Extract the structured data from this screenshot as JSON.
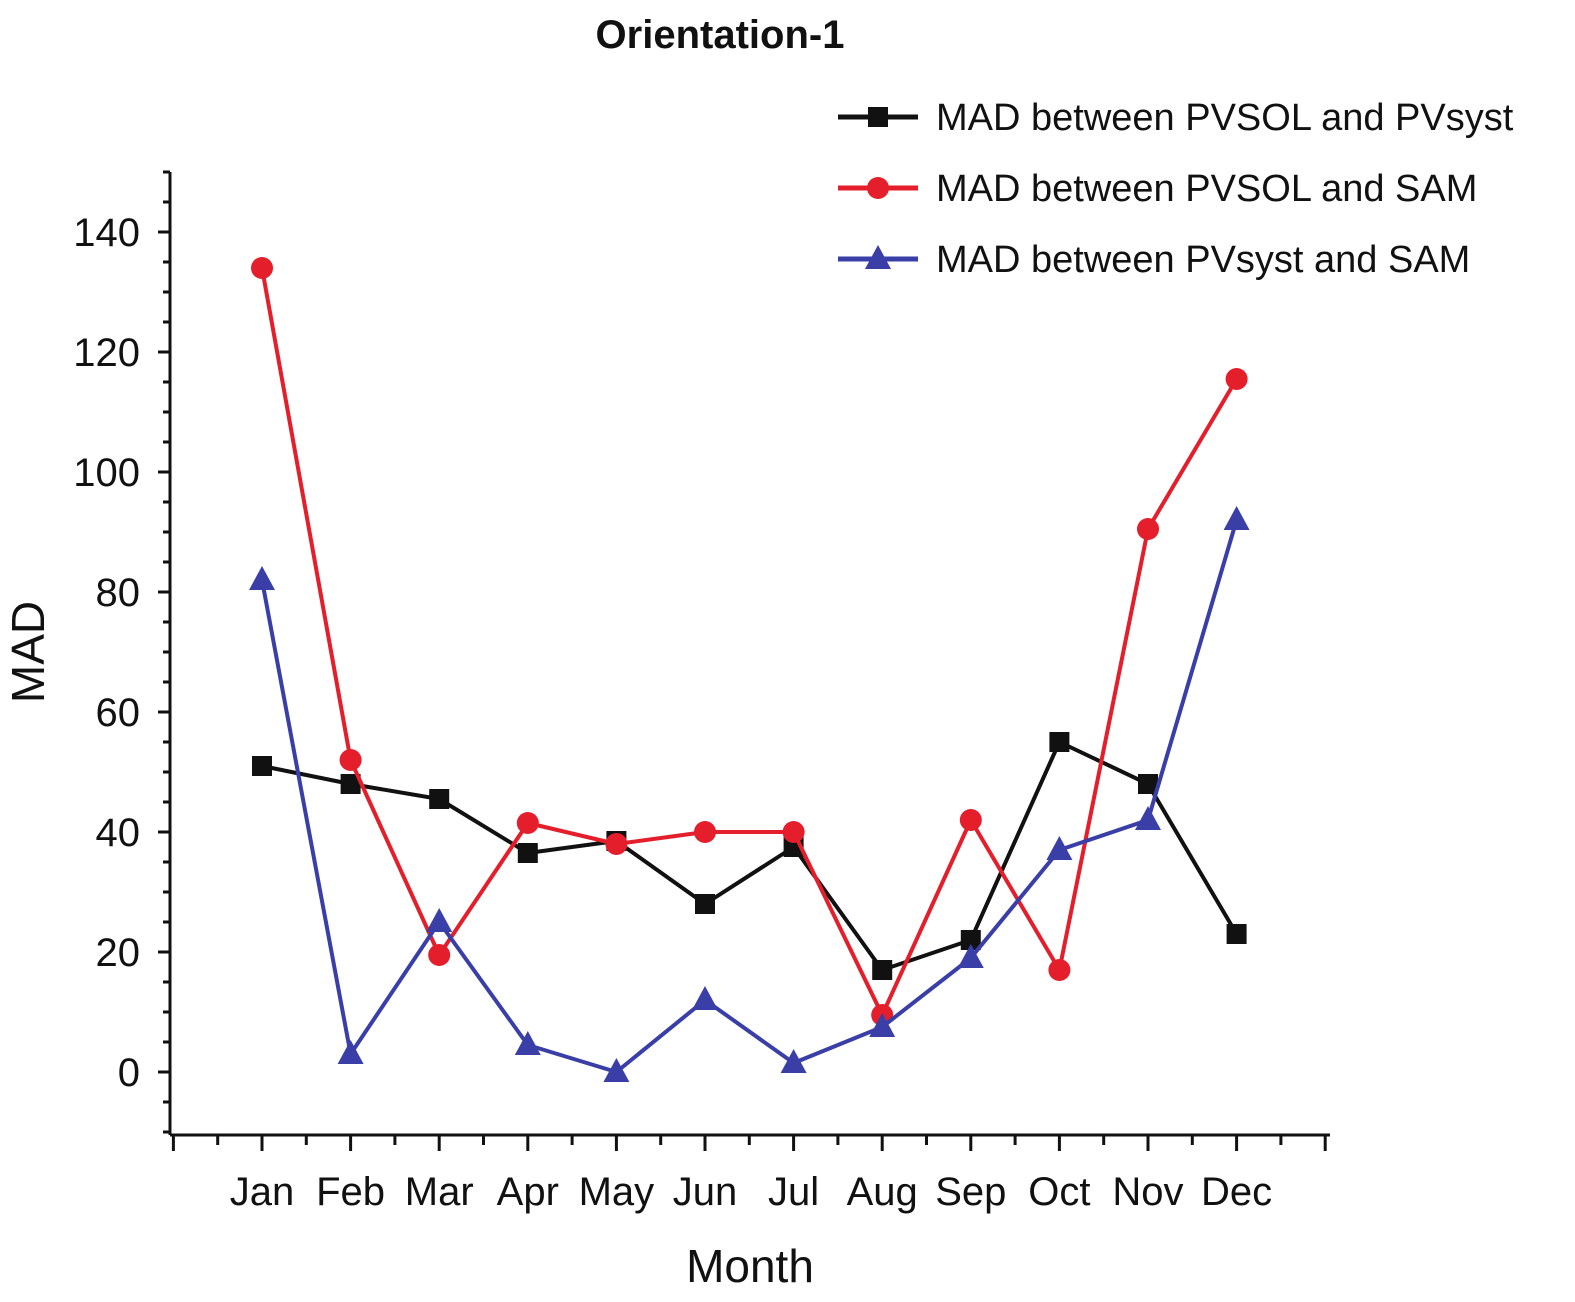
{
  "chart_data": {
    "type": "line",
    "title": "Orientation-1",
    "xlabel": "Month",
    "ylabel": "MAD",
    "categories": [
      "Jan",
      "Feb",
      "Mar",
      "Apr",
      "May",
      "Jun",
      "Jul",
      "Aug",
      "Sep",
      "Oct",
      "Nov",
      "Dec"
    ],
    "ylim": [
      -10,
      150
    ],
    "yticks": [
      0,
      20,
      40,
      60,
      80,
      100,
      120,
      140
    ],
    "legend_position": "top-right",
    "series": [
      {
        "name": "MAD between PVSOL and PVsyst",
        "color": "#111111",
        "marker": "square",
        "values": [
          51,
          48,
          45.5,
          36.5,
          38.5,
          28,
          37.5,
          17,
          22,
          55,
          48,
          23
        ]
      },
      {
        "name": "MAD between PVSOL and SAM",
        "color": "#e41e2b",
        "marker": "circle",
        "values": [
          134,
          52,
          19.5,
          41.5,
          38,
          40,
          40,
          9.5,
          42,
          17,
          90.5,
          115.5
        ]
      },
      {
        "name": "MAD between PVsyst and SAM",
        "color": "#3a3fa8",
        "marker": "triangle",
        "values": [
          82,
          3,
          25,
          4.5,
          0,
          12,
          1.5,
          7.5,
          19,
          37,
          42,
          92
        ]
      }
    ]
  }
}
